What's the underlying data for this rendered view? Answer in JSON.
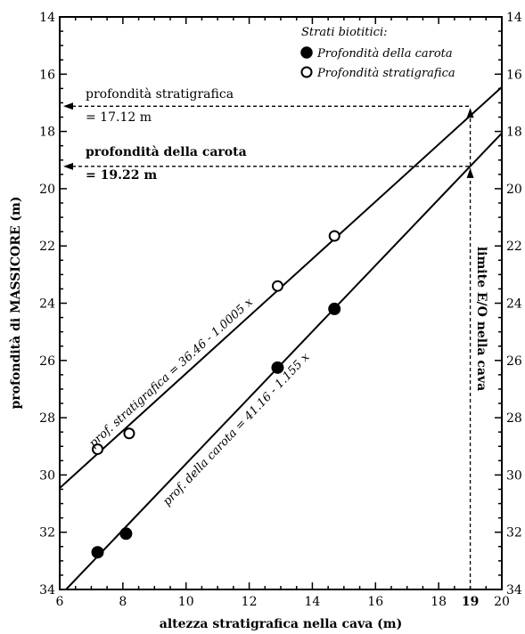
{
  "chart_data": {
    "type": "scatter",
    "title": "",
    "xlabel": "altezza stratigrafica nella cava (m)",
    "ylabel": "profondità di MASSICORE (m)",
    "xlim": [
      6,
      20
    ],
    "ylim": [
      34,
      14
    ],
    "y_inverted": true,
    "grid": false,
    "x_ticks": [
      "6",
      "8",
      "10",
      "12",
      "14",
      "16",
      "18",
      "19",
      "20"
    ],
    "y_ticks": [
      "14",
      "16",
      "18",
      "20",
      "22",
      "24",
      "26",
      "28",
      "30",
      "32",
      "34"
    ],
    "legend": {
      "title": "Strati biotitici:",
      "position": "top-right",
      "entries": [
        "Profondità della carota",
        "Profondità stratigrafica"
      ]
    },
    "series": [
      {
        "name": "Profondità della carota",
        "marker": "filled-circle",
        "points": [
          {
            "x": 7.2,
            "y": 32.7
          },
          {
            "x": 8.1,
            "y": 32.05
          },
          {
            "x": 12.9,
            "y": 26.25
          },
          {
            "x": 14.7,
            "y": 24.2
          }
        ]
      },
      {
        "name": "Profondità stratigrafica",
        "marker": "open-circle",
        "points": [
          {
            "x": 7.2,
            "y": 29.1
          },
          {
            "x": 8.2,
            "y": 28.55
          },
          {
            "x": 12.9,
            "y": 23.4
          },
          {
            "x": 14.7,
            "y": 21.65
          }
        ]
      }
    ],
    "fit_lines": [
      {
        "label": "prof. stratigrafica = 36.46 - 1.0005 x",
        "intercept": 36.46,
        "slope": -1.0005
      },
      {
        "label": "prof. della carota = 41.16 - 1.155 x",
        "intercept": 41.16,
        "slope": -1.155
      }
    ],
    "annotations": {
      "stratigraphic_depth_line1": "profondità stratigrafica",
      "stratigraphic_depth_line2": "= 17.12 m",
      "core_depth_line1": "profondità della carota",
      "core_depth_line2": "= 19.22 m",
      "boundary_label": "limite E/O nella cava",
      "stratigraphic_depth_value": 17.12,
      "core_depth_value": 19.22,
      "boundary_x": 19
    }
  }
}
